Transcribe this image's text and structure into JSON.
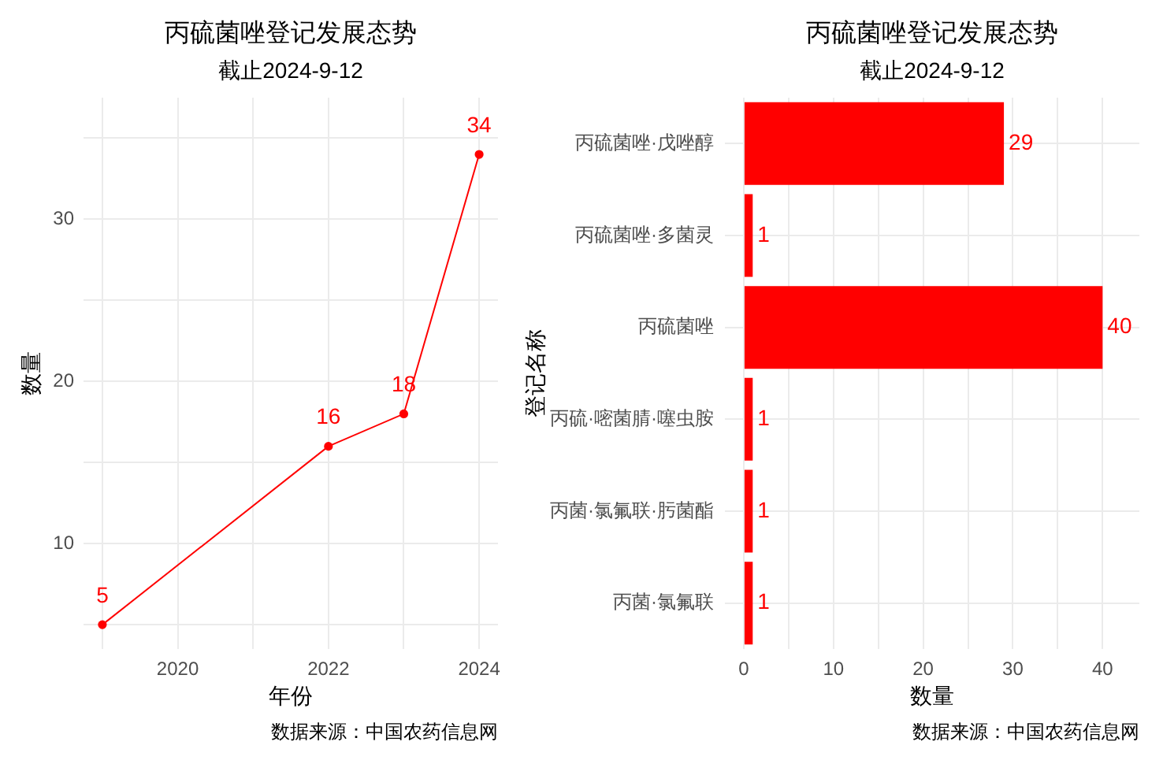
{
  "chart_data": [
    {
      "type": "line",
      "title": "丙硫菌唑登记发展态势",
      "subtitle": "截止2024-9-12",
      "xlabel": "年份",
      "ylabel": "数量",
      "x": [
        2019,
        2022,
        2023,
        2024
      ],
      "values": [
        5,
        16,
        18,
        34
      ],
      "color": "#ff0000",
      "marker": "circle",
      "xlim": [
        2018.75,
        2024.25
      ],
      "xticks": [
        {
          "value": 2019,
          "label": null
        },
        2020,
        {
          "value": 2021,
          "label": null
        },
        2022,
        {
          "value": 2023,
          "label": null
        },
        2024
      ],
      "ylim": [
        3.5,
        37.5
      ],
      "yticks": [
        {
          "value": 5,
          "label": null
        },
        10,
        {
          "value": 15,
          "label": null
        },
        20,
        {
          "value": 25,
          "label": null
        },
        30,
        {
          "value": 35,
          "label": null
        }
      ],
      "grid": true,
      "data_labels": true,
      "annotations": [
        "数据来源：中国农药信息网"
      ]
    },
    {
      "type": "bar",
      "orientation": "horizontal",
      "title": "丙硫菌唑登记发展态势",
      "subtitle": "截止2024-9-12",
      "xlabel": "数量",
      "ylabel": "登记名称",
      "categories": [
        "丙硫菌唑·戊唑醇",
        "丙硫菌唑·多菌灵",
        "丙硫菌唑",
        "丙硫·嘧菌腈·噻虫胺",
        "丙菌·氯氟联·肟菌酯",
        "丙菌·氯氟联"
      ],
      "values": [
        29,
        1,
        40,
        1,
        1,
        1
      ],
      "color": "#ff0000",
      "xlim": [
        -2.1,
        44.1
      ],
      "xticks": [
        0,
        {
          "value": 5,
          "label": null
        },
        10,
        {
          "value": 15,
          "label": null
        },
        20,
        {
          "value": 25,
          "label": null
        },
        30,
        {
          "value": 35,
          "label": null
        },
        40
      ],
      "grid": true,
      "data_labels": true,
      "annotations": [
        "数据来源：中国农药信息网"
      ]
    }
  ]
}
